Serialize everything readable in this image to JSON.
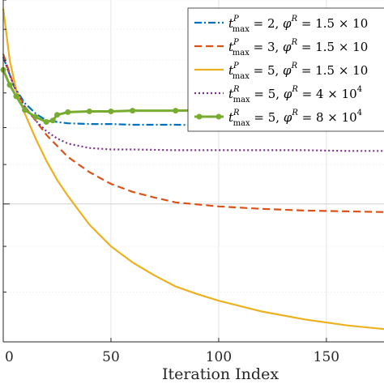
{
  "chart_data": {
    "type": "line",
    "xlabel": "Iteration Index",
    "ylabel": "",
    "xlim": [
      0,
      179
    ],
    "ylim": [
      0.55,
      1.0
    ],
    "yscale": "log",
    "grid": true,
    "legend_position": "top-right",
    "x_ticks": [
      "0",
      "50",
      "100",
      "150"
    ],
    "colors": [
      "#0072BD",
      "#D95319",
      "#EDB120",
      "#7E2F8E",
      "#77AC30"
    ],
    "series": [
      {
        "name": "t^P_max = 2, φ^R = 1.5 × 10",
        "legend": {
          "t": "t",
          "sup": "P",
          "sub": "max",
          "eq1": " = 2, ",
          "phi": "φ",
          "sup2": "R",
          "eq2": " = 1.5 × 10"
        },
        "color": "#0072BD",
        "style": "dashdot",
        "x": [
          0,
          5,
          10,
          15,
          20,
          25,
          30,
          40,
          50,
          60,
          80,
          100,
          120,
          140,
          160,
          179
        ],
        "y": [
          0.905,
          0.86,
          0.835,
          0.82,
          0.81,
          0.808,
          0.806,
          0.805,
          0.805,
          0.804,
          0.804,
          0.803,
          0.803,
          0.802,
          0.802,
          0.802
        ]
      },
      {
        "name": "t^P_max = 3, φ^R = 1.5 × 10",
        "legend": {
          "t": "t",
          "sup": "P",
          "sub": "max",
          "eq1": " = 3, ",
          "phi": "φ",
          "sup2": "R",
          "eq2": " = 1.5 × 10"
        },
        "color": "#D95319",
        "style": "dashed",
        "x": [
          0,
          5,
          10,
          15,
          20,
          30,
          40,
          50,
          60,
          70,
          80,
          100,
          120,
          140,
          160,
          179
        ],
        "y": [
          0.91,
          0.86,
          0.83,
          0.81,
          0.79,
          0.76,
          0.74,
          0.725,
          0.715,
          0.708,
          0.702,
          0.697,
          0.694,
          0.692,
          0.691,
          0.69
        ]
      },
      {
        "name": "t^P_max = 5, φ^R = 1.5 × 10",
        "legend": {
          "t": "t",
          "sup": "P",
          "sub": "max",
          "eq1": " = 5, ",
          "phi": "φ",
          "sup2": "R",
          "eq2": " = 1.5 × 10"
        },
        "color": "#EDB120",
        "style": "solid",
        "x": [
          0,
          3,
          6,
          10,
          15,
          20,
          25,
          30,
          40,
          50,
          60,
          70,
          80,
          90,
          100,
          120,
          140,
          160,
          179
        ],
        "y": [
          0.985,
          0.9,
          0.855,
          0.82,
          0.785,
          0.755,
          0.73,
          0.71,
          0.675,
          0.65,
          0.632,
          0.618,
          0.606,
          0.598,
          0.591,
          0.58,
          0.572,
          0.566,
          0.562
        ]
      },
      {
        "name": "t^R_max = 5, φ^R = 4 × 10^4",
        "legend": {
          "t": "t",
          "sup": "R",
          "sub": "max",
          "eq1": " = 5, ",
          "phi": "φ",
          "sup2": "R",
          "eq2": " = 4 × 10",
          "exp": "4"
        },
        "color": "#7E2F8E",
        "style": "dotted",
        "x": [
          0,
          5,
          10,
          15,
          20,
          25,
          30,
          40,
          50,
          60,
          80,
          100,
          120,
          140,
          160,
          179
        ],
        "y": [
          0.905,
          0.86,
          0.83,
          0.81,
          0.795,
          0.785,
          0.778,
          0.772,
          0.77,
          0.77,
          0.769,
          0.769,
          0.769,
          0.769,
          0.768,
          0.768
        ]
      },
      {
        "name": "t^R_max = 5, φ^R = 8 × 10^4",
        "legend": {
          "t": "t",
          "sup": "R",
          "sub": "max",
          "eq1": " = 5, ",
          "phi": "φ",
          "sup2": "R",
          "eq2": " = 8 × 10",
          "exp": "4"
        },
        "color": "#77AC30",
        "style": "solid-marker",
        "x": [
          0,
          3,
          6,
          10,
          15,
          20,
          23,
          25,
          30,
          40,
          50,
          60,
          80,
          100,
          120,
          140,
          160,
          179
        ],
        "y": [
          0.885,
          0.862,
          0.845,
          0.825,
          0.815,
          0.808,
          0.81,
          0.818,
          0.822,
          0.823,
          0.823,
          0.824,
          0.824,
          0.825,
          0.825,
          0.826,
          0.826,
          0.826
        ]
      }
    ]
  }
}
